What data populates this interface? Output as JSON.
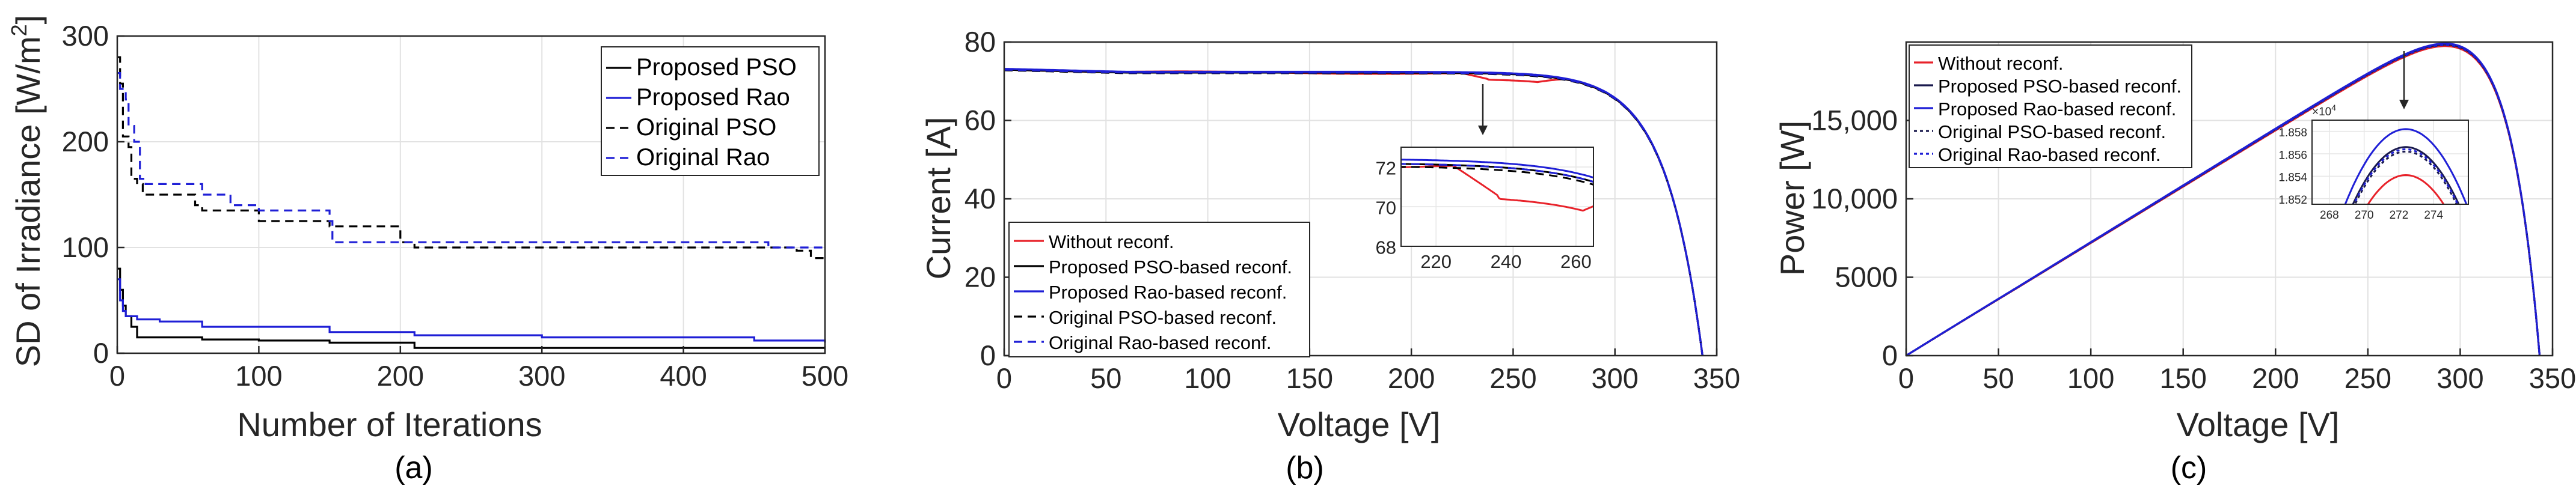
{
  "chart_data": [
    {
      "type": "line",
      "caption": "(a)",
      "xlabel": "Number of Iterations",
      "ylabel": "SD of Irradiance [W/m",
      "ylabel_sup": "2",
      "ylabel_end": "]",
      "xlim": [
        0,
        500
      ],
      "ylim": [
        0,
        300
      ],
      "xticks": [
        0,
        100,
        200,
        300,
        400,
        500
      ],
      "xtick_labels": [
        "0",
        "100",
        "200",
        "300",
        "400",
        "500"
      ],
      "yticks": [
        0,
        100,
        200,
        300
      ],
      "ytick_labels": [
        "0",
        "100",
        "200",
        "300"
      ],
      "grid": true,
      "legend_position": "top-right",
      "series": [
        {
          "name": "Proposed PSO",
          "color": "#000000",
          "dash": "solid",
          "x": [
            0,
            2,
            4,
            6,
            10,
            14,
            20,
            60,
            100,
            150,
            200,
            210,
            300,
            400,
            500
          ],
          "y": [
            80,
            60,
            45,
            35,
            25,
            15,
            15,
            13,
            12,
            10,
            10,
            5,
            5,
            5,
            5
          ]
        },
        {
          "name": "Proposed Rao",
          "color": "#1f1fd6",
          "dash": "solid",
          "x": [
            0,
            2,
            4,
            6,
            10,
            14,
            30,
            60,
            100,
            150,
            200,
            210,
            300,
            400,
            450,
            500
          ],
          "y": [
            70,
            50,
            40,
            35,
            35,
            32,
            30,
            25,
            25,
            20,
            20,
            17,
            15,
            15,
            12,
            10
          ]
        },
        {
          "name": "Original PSO",
          "color": "#000000",
          "dash": "dashed",
          "x": [
            0,
            2,
            4,
            8,
            10,
            14,
            18,
            35,
            55,
            60,
            100,
            150,
            200,
            210,
            300,
            400,
            450,
            480,
            490,
            500
          ],
          "y": [
            280,
            255,
            205,
            195,
            165,
            160,
            150,
            150,
            140,
            135,
            125,
            120,
            105,
            100,
            100,
            100,
            100,
            97,
            90,
            90
          ]
        },
        {
          "name": "Original Rao",
          "color": "#1f1fd6",
          "dash": "dashed",
          "x": [
            0,
            2,
            6,
            8,
            12,
            16,
            20,
            30,
            50,
            60,
            80,
            100,
            150,
            152,
            200,
            300,
            400,
            450,
            460,
            500
          ],
          "y": [
            265,
            250,
            240,
            215,
            200,
            165,
            160,
            160,
            160,
            150,
            140,
            135,
            125,
            105,
            105,
            105,
            105,
            105,
            100,
            100
          ]
        }
      ]
    },
    {
      "type": "line",
      "caption": "(b)",
      "xlabel": "Voltage [V]",
      "ylabel": "Current [A]",
      "xlim": [
        0,
        350
      ],
      "ylim": [
        0,
        80
      ],
      "xticks": [
        0,
        50,
        100,
        150,
        200,
        250,
        300,
        350
      ],
      "xtick_labels": [
        "0",
        "50",
        "100",
        "150",
        "200",
        "250",
        "300",
        "350"
      ],
      "yticks": [
        0,
        20,
        40,
        60,
        80
      ],
      "ytick_labels": [
        "0",
        "20",
        "40",
        "60",
        "80"
      ],
      "grid": true,
      "legend_position": "bottom-left",
      "series": [
        {
          "name": "Without reconf.",
          "color": "#e8222a",
          "dash": "solid"
        },
        {
          "name": "Proposed PSO-based reconf.",
          "color": "#000000",
          "dash": "solid"
        },
        {
          "name": "Proposed Rao-based reconf.",
          "color": "#1f1fd6",
          "dash": "solid"
        },
        {
          "name": "Original PSO-based reconf.",
          "color": "#000000",
          "dash": "dashed"
        },
        {
          "name": "Original Rao-based reconf.",
          "color": "#1f1fd6",
          "dash": "dashed"
        }
      ],
      "inset": {
        "xlim": [
          210,
          265
        ],
        "ylim": [
          68,
          73
        ],
        "xticks": [
          220,
          240,
          260
        ],
        "xtick_labels": [
          "220",
          "240",
          "260"
        ],
        "yticks": [
          68,
          70,
          72
        ],
        "ytick_labels": [
          "68",
          "70",
          "72"
        ]
      }
    },
    {
      "type": "line",
      "caption": "(c)",
      "xlabel": "Voltage [V]",
      "ylabel": "Power [W]",
      "xlim": [
        0,
        350
      ],
      "ylim": [
        0,
        20000
      ],
      "xticks": [
        0,
        50,
        100,
        150,
        200,
        250,
        300,
        350
      ],
      "xtick_labels": [
        "0",
        "50",
        "100",
        "150",
        "200",
        "250",
        "300",
        "350"
      ],
      "yticks": [
        0,
        5000,
        10000,
        15000
      ],
      "ytick_labels": [
        "0",
        "5000",
        "10,000",
        "15,000"
      ],
      "grid": true,
      "legend_position": "top-left",
      "series": [
        {
          "name": "Without reconf.",
          "color": "#e8222a",
          "dash": "solid"
        },
        {
          "name": "Proposed PSO-based reconf.",
          "color": "#1a1a4d",
          "dash": "solid"
        },
        {
          "name": "Proposed Rao-based reconf.",
          "color": "#1f1fd6",
          "dash": "solid"
        },
        {
          "name": "Original PSO-based reconf.",
          "color": "#1a1a4d",
          "dash": "dotted"
        },
        {
          "name": "Original Rao-based reconf.",
          "color": "#1f1fd6",
          "dash": "dotted"
        }
      ],
      "inset": {
        "xlim": [
          267,
          276
        ],
        "ylim": [
          18515,
          18590
        ],
        "exponent_label": "×10",
        "exponent_sup": "4",
        "xticks": [
          268,
          270,
          272,
          274
        ],
        "xtick_labels": [
          "268",
          "270",
          "272",
          "274"
        ],
        "yticks": [
          18520,
          18540,
          18560,
          18580
        ],
        "ytick_labels": [
          "1.852",
          "1.854",
          "1.856",
          "1.858"
        ]
      }
    }
  ]
}
